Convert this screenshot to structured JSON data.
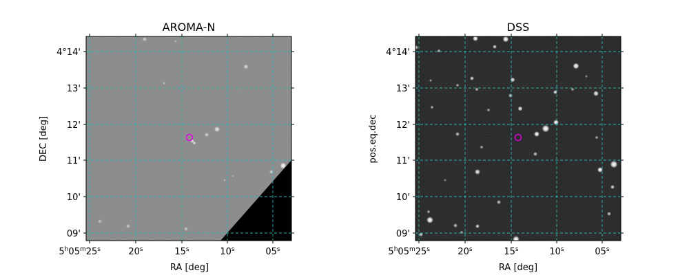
{
  "figure": {
    "panels": [
      {
        "title": "AROMA-N",
        "xlabel": "RA [deg]",
        "ylabel": "DEC [deg]"
      },
      {
        "title": "DSS",
        "xlabel": "RA [deg]",
        "ylabel": "pos.eq.dec"
      }
    ],
    "x_ticks": [
      "05",
      "10",
      "15",
      "20",
      "25"
    ],
    "y_ticks": [
      "4°14'",
      "13'",
      "12'",
      "11'",
      "10'",
      "09'"
    ],
    "colors": {
      "grid": "#2ab7b7",
      "marker": "#e000e0",
      "aroma_background": "#8a8a8a",
      "dss_background": "#1c1c1c"
    }
  }
}
